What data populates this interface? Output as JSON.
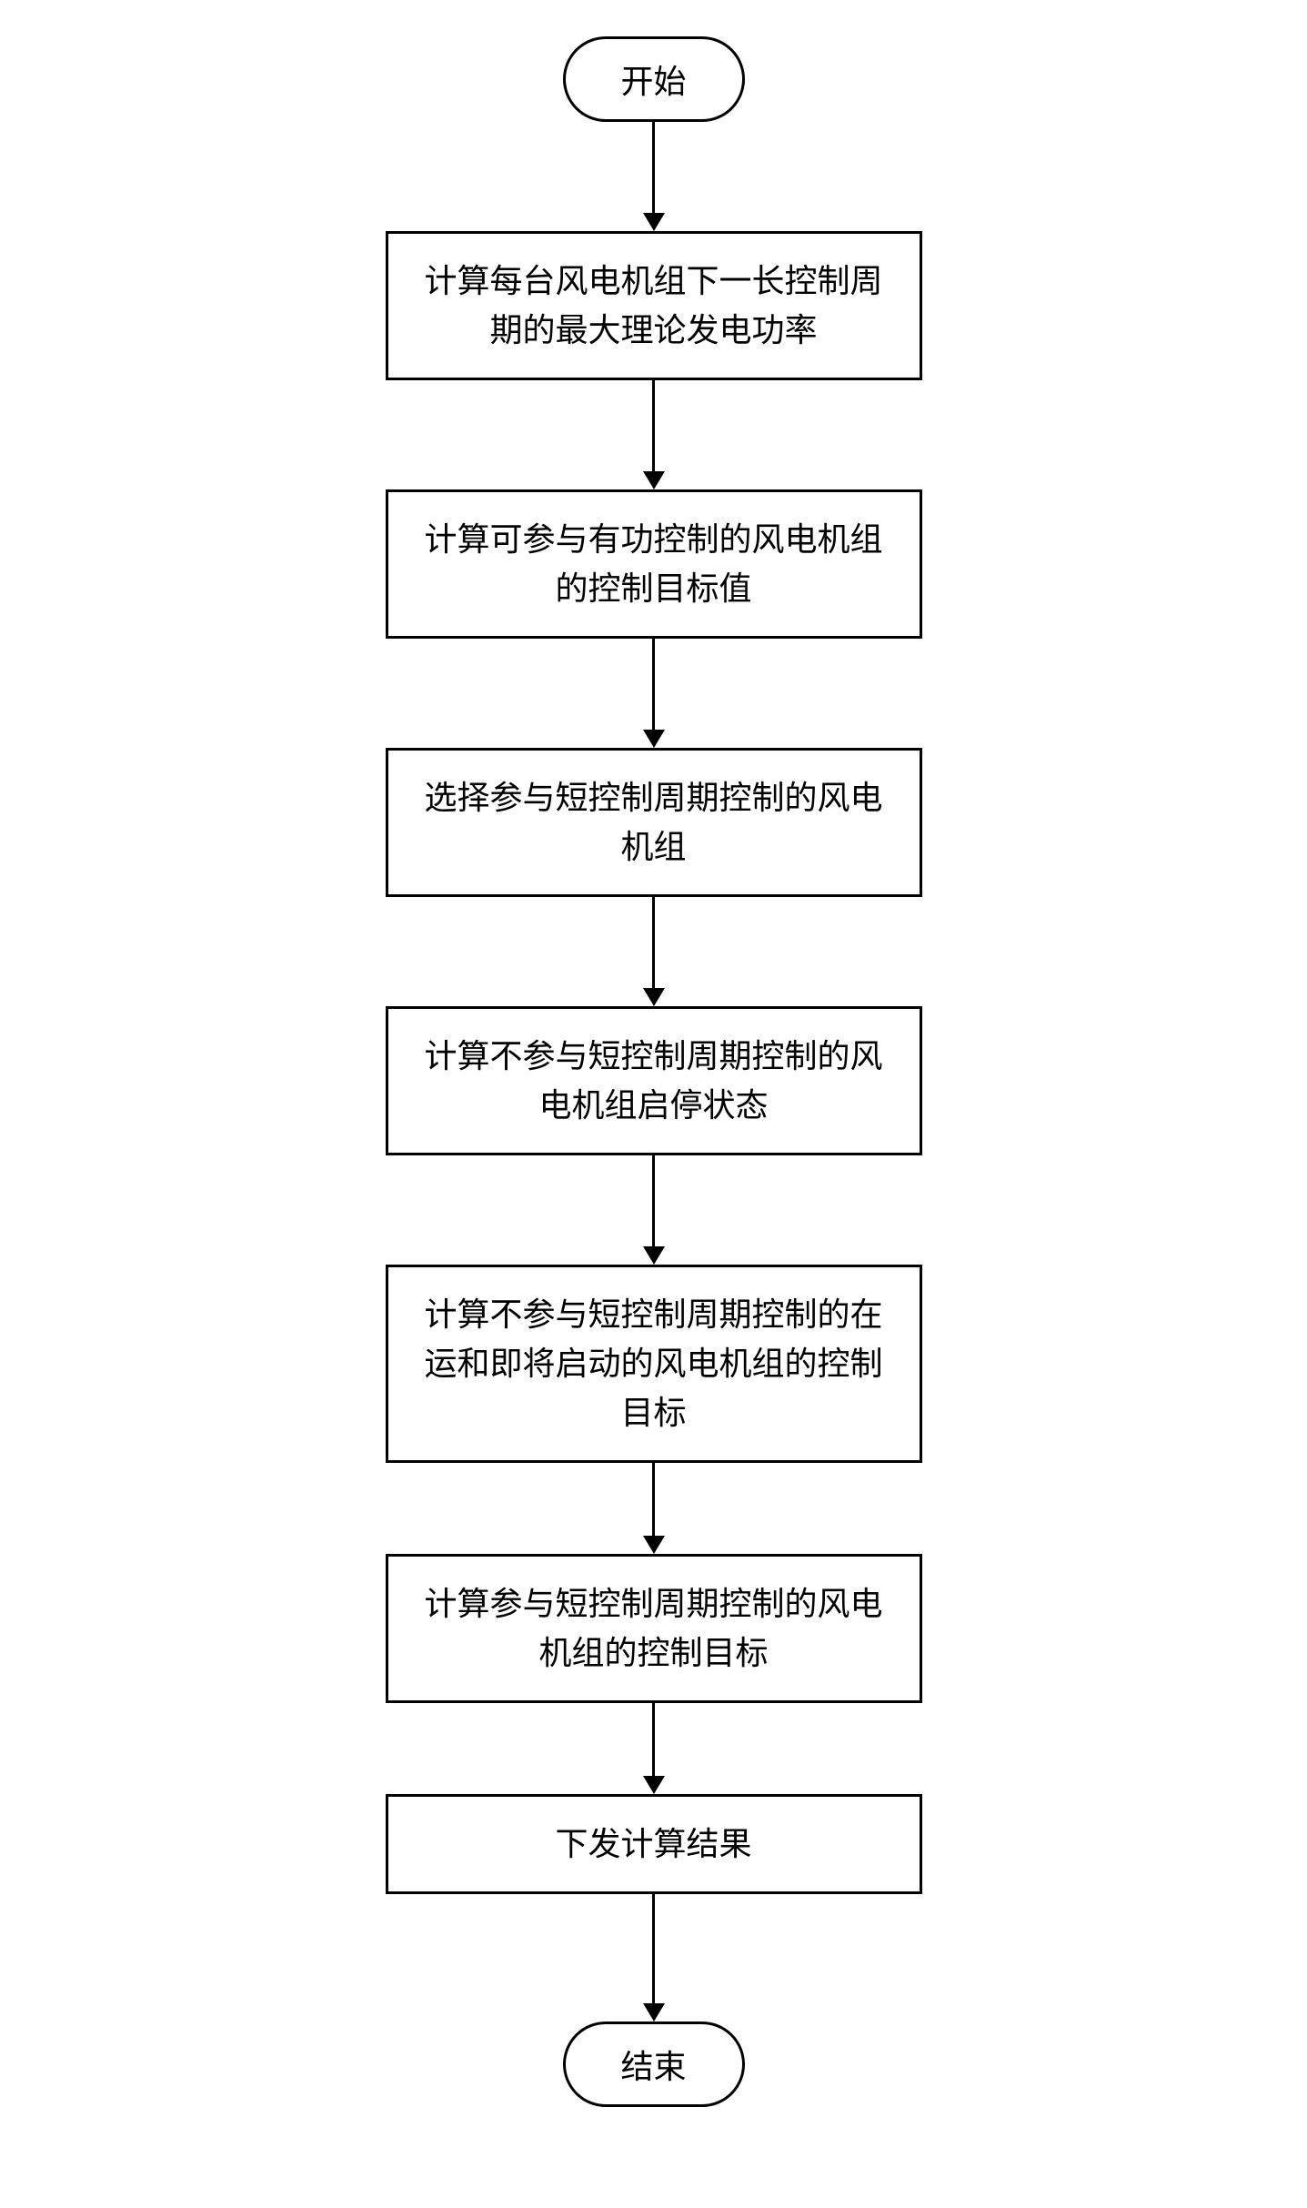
{
  "flowchart": {
    "type": "flowchart",
    "background_color": "#ffffff",
    "border_color": "#000000",
    "border_width": 3,
    "text_color": "#000000",
    "font_size": 36,
    "font_family": "SimSun",
    "process_width": 590,
    "terminal_border_radius": 50,
    "arrow_line_width": 3,
    "arrow_head_width": 24,
    "arrow_head_height": 20,
    "nodes": [
      {
        "id": "start",
        "type": "terminal",
        "label": "开始"
      },
      {
        "id": "step1",
        "type": "process",
        "label": "计算每台风电机组下一长控制周期的最大理论发电功率"
      },
      {
        "id": "step2",
        "type": "process",
        "label": "计算可参与有功控制的风电机组的控制目标值"
      },
      {
        "id": "step3",
        "type": "process",
        "label": "选择参与短控制周期控制的风电机组"
      },
      {
        "id": "step4",
        "type": "process",
        "label": "计算不参与短控制周期控制的风电机组启停状态"
      },
      {
        "id": "step5",
        "type": "process",
        "label": "计算不参与短控制周期控制的在运和即将启动的风电机组的控制目标"
      },
      {
        "id": "step6",
        "type": "process",
        "label": "计算参与短控制周期控制的风电机组的控制目标"
      },
      {
        "id": "step7",
        "type": "process",
        "label": "下发计算结果"
      },
      {
        "id": "end",
        "type": "terminal",
        "label": "结束"
      }
    ],
    "arrows": {
      "heights": [
        100,
        100,
        100,
        100,
        100,
        80,
        80,
        120
      ]
    }
  }
}
